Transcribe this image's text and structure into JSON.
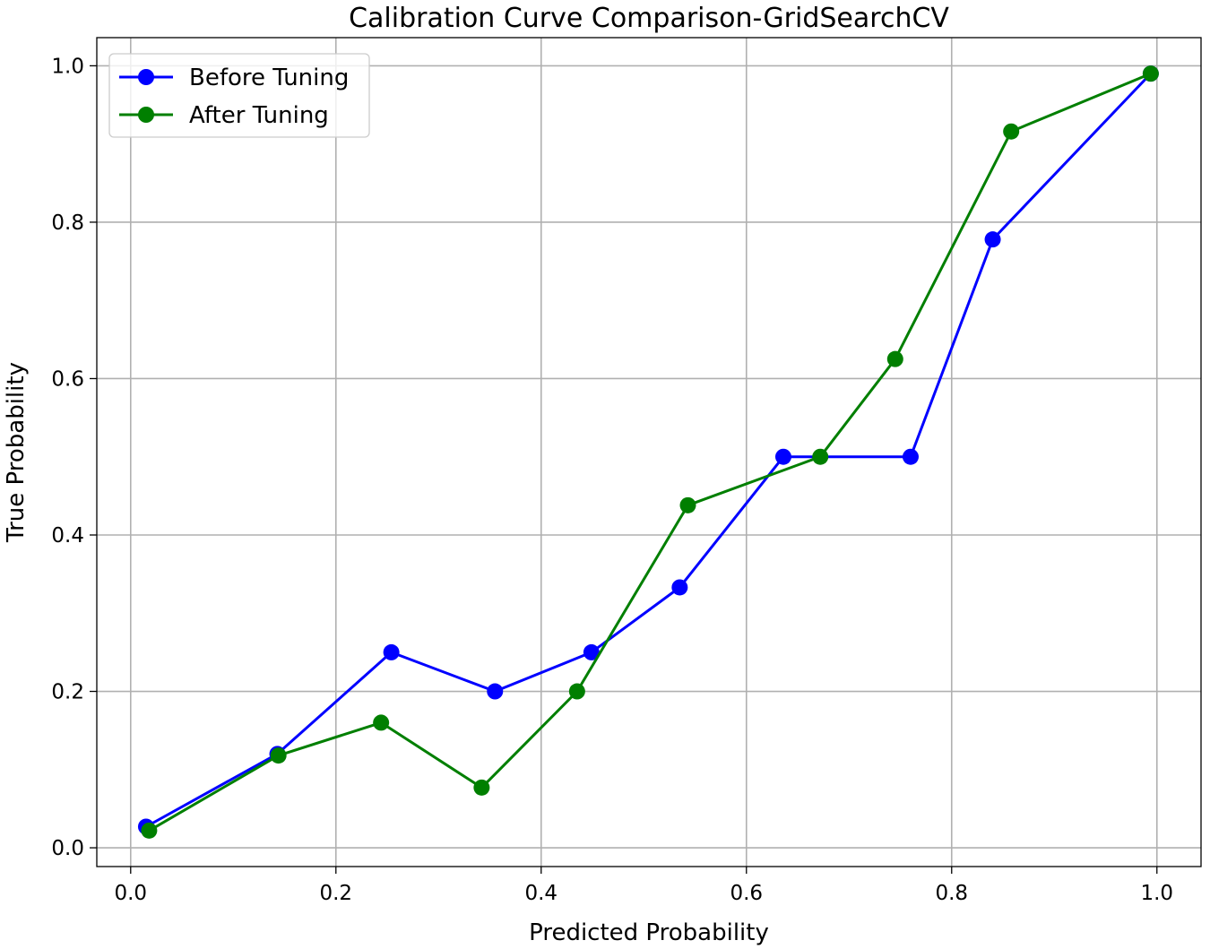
{
  "chart_data": {
    "type": "line",
    "title": "Calibration Curve Comparison-GridSearchCV",
    "xlabel": "Predicted Probability",
    "ylabel": "True Probability",
    "xlim": [
      -0.033,
      1.043
    ],
    "ylim": [
      -0.024,
      1.036
    ],
    "x_ticks": [
      0.0,
      0.2,
      0.4,
      0.6,
      0.8,
      1.0
    ],
    "x_tick_labels": [
      "0.0",
      "0.2",
      "0.4",
      "0.6",
      "0.8",
      "1.0"
    ],
    "y_ticks": [
      0.0,
      0.2,
      0.4,
      0.6,
      0.8,
      1.0
    ],
    "y_tick_labels": [
      "0.0",
      "0.2",
      "0.4",
      "0.6",
      "0.8",
      "1.0"
    ],
    "grid": true,
    "legend_position": "top-left",
    "series": [
      {
        "name": "Before Tuning",
        "color": "#0000ff",
        "x": [
          0.015,
          0.143,
          0.254,
          0.355,
          0.449,
          0.535,
          0.636,
          0.76,
          0.84,
          0.994
        ],
        "y": [
          0.027,
          0.12,
          0.25,
          0.2,
          0.25,
          0.333,
          0.5,
          0.5,
          0.778,
          0.99
        ]
      },
      {
        "name": "After Tuning",
        "color": "#007f00",
        "x": [
          0.018,
          0.144,
          0.244,
          0.342,
          0.435,
          0.543,
          0.672,
          0.745,
          0.858,
          0.994
        ],
        "y": [
          0.022,
          0.118,
          0.16,
          0.077,
          0.2,
          0.438,
          0.5,
          0.625,
          0.916,
          0.99
        ]
      }
    ]
  }
}
